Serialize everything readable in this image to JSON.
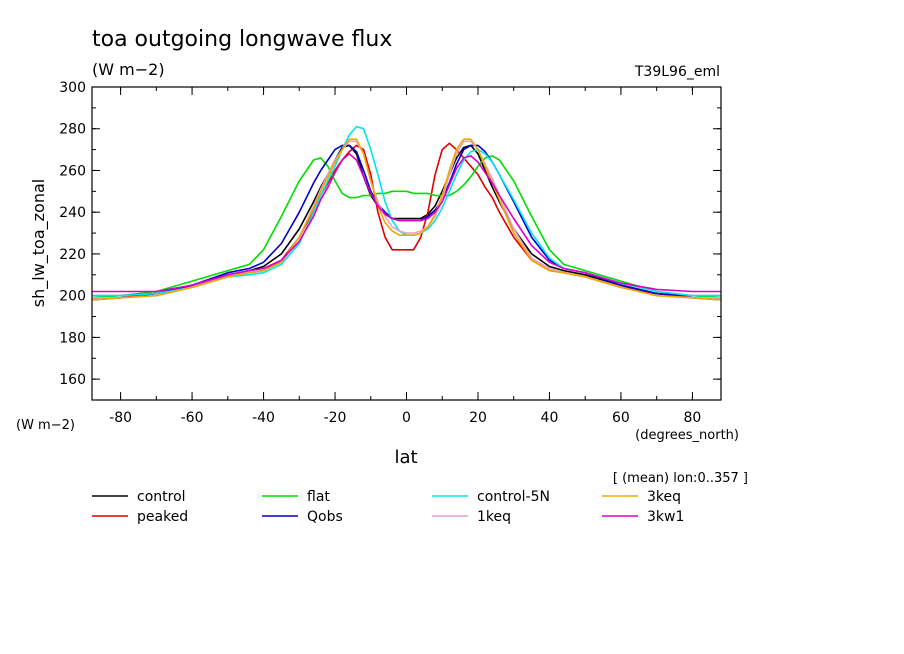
{
  "chart_data": {
    "type": "line",
    "title": "toa outgoing longwave flux",
    "units": "(W m−2)",
    "units_left": "(W m−2)",
    "run_label": "T39L96_eml",
    "ylabel": "sh_lw_toa_zonal",
    "xlabel": "lat",
    "x_units": "(degrees_north)",
    "note": "[ (mean) lon:0..357 ]",
    "xlim": [
      -88,
      88
    ],
    "ylim": [
      150,
      300
    ],
    "x_ticks": [
      -80,
      -60,
      -40,
      -20,
      0,
      20,
      40,
      60,
      80
    ],
    "y_ticks": [
      160,
      180,
      200,
      220,
      240,
      260,
      280,
      300
    ],
    "x": [
      -88,
      -80,
      -70,
      -60,
      -50,
      -44,
      -40,
      -35,
      -30,
      -26,
      -24,
      -22,
      -20,
      -18,
      -16,
      -14,
      -12,
      -10,
      -8,
      -6,
      -4,
      -2,
      0,
      2,
      4,
      6,
      8,
      10,
      12,
      14,
      16,
      18,
      20,
      22,
      24,
      26,
      30,
      35,
      40,
      44,
      50,
      60,
      70,
      80,
      88
    ],
    "series": [
      {
        "name": "control",
        "color": "#000000",
        "values": [
          198,
          199,
          201,
          205,
          210,
          212,
          214,
          220,
          232,
          245,
          252,
          258,
          265,
          271,
          272,
          268,
          257,
          248,
          243,
          239,
          237,
          237,
          237,
          237,
          237,
          239,
          243,
          250,
          258,
          266,
          271,
          272,
          268,
          260,
          252,
          245,
          232,
          220,
          214,
          212,
          210,
          205,
          201,
          199,
          198
        ]
      },
      {
        "name": "peaked",
        "color": "#e00000",
        "values": [
          199,
          199,
          201,
          204,
          209,
          211,
          212,
          217,
          228,
          241,
          248,
          254,
          260,
          265,
          269,
          272,
          270,
          258,
          240,
          228,
          222,
          222,
          222,
          222,
          228,
          240,
          258,
          270,
          273,
          270,
          266,
          262,
          258,
          252,
          247,
          240,
          228,
          217,
          212,
          211,
          209,
          204,
          201,
          199,
          199
        ]
      },
      {
        "name": "flat",
        "color": "#00dd00",
        "values": [
          199,
          200,
          202,
          207,
          212,
          215,
          222,
          238,
          255,
          265,
          266,
          262,
          255,
          249,
          247,
          247,
          248,
          248,
          249,
          249,
          250,
          250,
          250,
          249,
          249,
          249,
          248,
          248,
          248,
          250,
          253,
          257,
          262,
          266,
          267,
          265,
          255,
          238,
          222,
          215,
          212,
          207,
          202,
          200,
          199
        ]
      },
      {
        "name": "Qobs",
        "color": "#0000cc",
        "values": [
          200,
          200,
          201,
          205,
          211,
          213,
          216,
          225,
          240,
          254,
          260,
          265,
          270,
          272,
          272,
          269,
          260,
          250,
          244,
          240,
          237,
          236,
          236,
          236,
          236,
          238,
          241,
          246,
          254,
          263,
          270,
          272,
          272,
          269,
          264,
          258,
          245,
          228,
          217,
          213,
          211,
          205,
          201,
          200,
          200
        ]
      },
      {
        "name": "control-5N",
        "color": "#00e5ee",
        "values": [
          200,
          200,
          201,
          204,
          209,
          210,
          211,
          215,
          225,
          240,
          248,
          255,
          262,
          270,
          277,
          281,
          280,
          270,
          258,
          245,
          236,
          231,
          229,
          229,
          230,
          232,
          236,
          242,
          250,
          258,
          265,
          269,
          270,
          268,
          264,
          258,
          246,
          230,
          218,
          213,
          211,
          206,
          202,
          200,
          200
        ]
      },
      {
        "name": "1keq",
        "color": "#e8a0d0",
        "values": [
          199,
          199,
          200,
          204,
          209,
          211,
          212,
          216,
          228,
          243,
          251,
          258,
          265,
          270,
          274,
          274,
          268,
          255,
          245,
          238,
          233,
          231,
          230,
          230,
          231,
          233,
          238,
          246,
          258,
          268,
          274,
          274,
          270,
          263,
          256,
          248,
          232,
          218,
          213,
          211,
          209,
          204,
          200,
          199,
          199
        ]
      },
      {
        "name": "3keq",
        "color": "#f0a800",
        "values": [
          198,
          199,
          200,
          204,
          209,
          211,
          212,
          216,
          228,
          242,
          250,
          257,
          264,
          270,
          275,
          275,
          268,
          255,
          243,
          235,
          231,
          229,
          229,
          229,
          230,
          233,
          239,
          248,
          260,
          270,
          275,
          275,
          270,
          262,
          254,
          246,
          230,
          217,
          212,
          211,
          209,
          204,
          200,
          199,
          198
        ]
      },
      {
        "name": "3kw1",
        "color": "#dd00cc",
        "values": [
          202,
          202,
          202,
          205,
          210,
          212,
          213,
          217,
          226,
          238,
          246,
          252,
          259,
          265,
          268,
          265,
          257,
          249,
          243,
          239,
          237,
          236,
          236,
          236,
          236,
          237,
          240,
          245,
          253,
          261,
          266,
          267,
          264,
          259,
          254,
          248,
          237,
          224,
          216,
          213,
          211,
          206,
          203,
          202,
          202
        ]
      }
    ]
  }
}
